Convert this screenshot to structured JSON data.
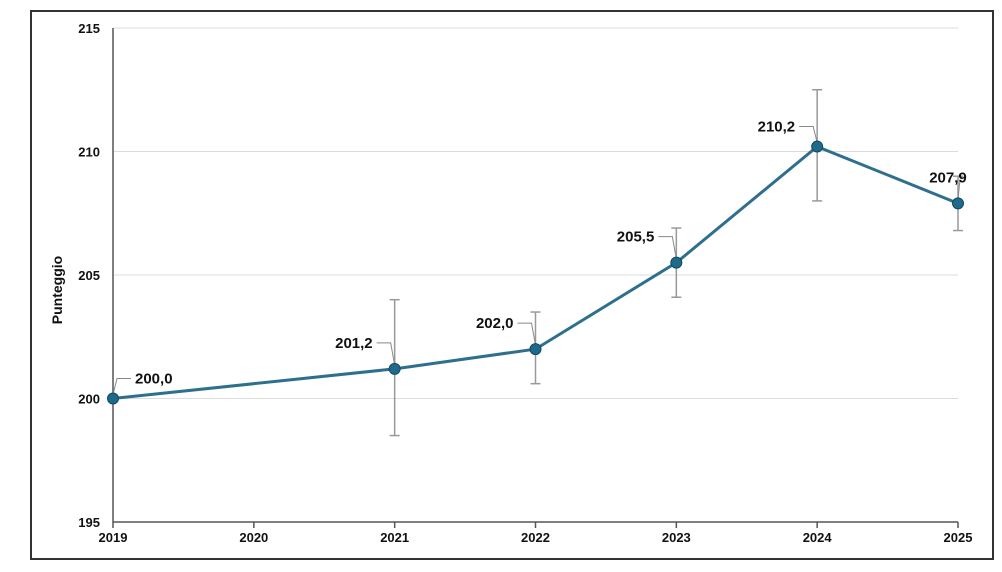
{
  "chart_data": {
    "type": "line",
    "title": "",
    "xlabel": "",
    "ylabel": "Punteggio",
    "ylim": [
      195,
      215
    ],
    "yticks": [
      "195",
      "200",
      "205",
      "210",
      "215"
    ],
    "x": [
      "2019",
      "2020",
      "2021",
      "2022",
      "2023",
      "2024",
      "2025"
    ],
    "points": [
      {
        "x": "2019",
        "y": 200.0,
        "label": "200,0",
        "err_low": null,
        "err_high": null
      },
      {
        "x": "2021",
        "y": 201.2,
        "label": "201,2",
        "err_low": 198.5,
        "err_high": 204.0
      },
      {
        "x": "2022",
        "y": 202.0,
        "label": "202,0",
        "err_low": 200.6,
        "err_high": 203.5
      },
      {
        "x": "2023",
        "y": 205.5,
        "label": "205,5",
        "err_low": 204.1,
        "err_high": 206.9
      },
      {
        "x": "2024",
        "y": 210.2,
        "label": "210,2",
        "err_low": 208.0,
        "err_high": 212.5
      },
      {
        "x": "2025",
        "y": 207.9,
        "label": "207,9",
        "err_low": 206.8,
        "err_high": 209.0
      }
    ],
    "grid": "horizontal",
    "legend": "none",
    "colors": {
      "line": "#2e6f8e",
      "marker": "#1f6a8a",
      "grid": "#dcdcdc",
      "errorbar": "#999999"
    }
  }
}
